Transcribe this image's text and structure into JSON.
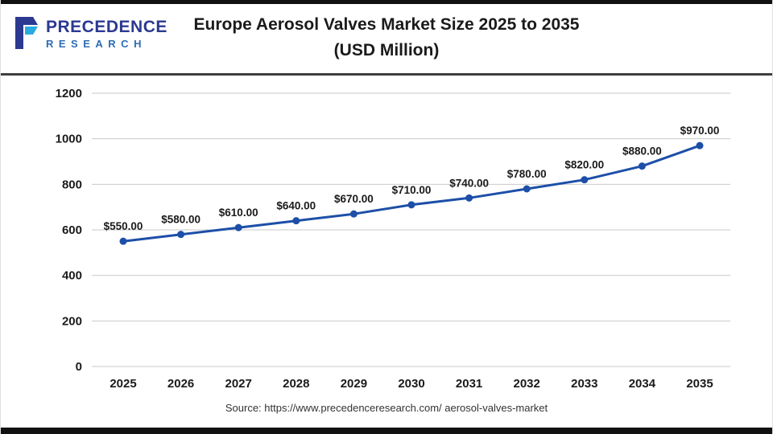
{
  "header": {
    "logo": {
      "line1": "PRECEDENCE",
      "line2": "RESEARCH"
    },
    "title_line1": "Europe Aerosol Valves Market Size 2025 to 2035",
    "title_line2": "(USD Million)"
  },
  "footer": {
    "source": "Source: https://www.precedenceresearch.com/ aerosol-valves-market"
  },
  "chart_data": {
    "type": "line",
    "title": "Europe Aerosol Valves Market Size 2025 to 2035 (USD Million)",
    "categories": [
      "2025",
      "2026",
      "2027",
      "2028",
      "2029",
      "2030",
      "2031",
      "2032",
      "2033",
      "2034",
      "2035"
    ],
    "values": [
      550,
      580,
      610,
      640,
      670,
      710,
      740,
      780,
      820,
      880,
      970
    ],
    "point_labels": [
      "$550.00",
      "$580.00",
      "$610.00",
      "$640.00",
      "$670.00",
      "$710.00",
      "$740.00",
      "$780.00",
      "$820.00",
      "$880.00",
      "$970.00"
    ],
    "yticks": [
      0,
      200,
      400,
      600,
      800,
      1000,
      1200
    ],
    "ylim": [
      0,
      1200
    ],
    "xlabel": "",
    "ylabel": "",
    "grid": true,
    "legend_position": "none",
    "line_color": "#1d4fa8",
    "grid_color": "#c9c9c9",
    "label_color": "#1a1a1a"
  }
}
